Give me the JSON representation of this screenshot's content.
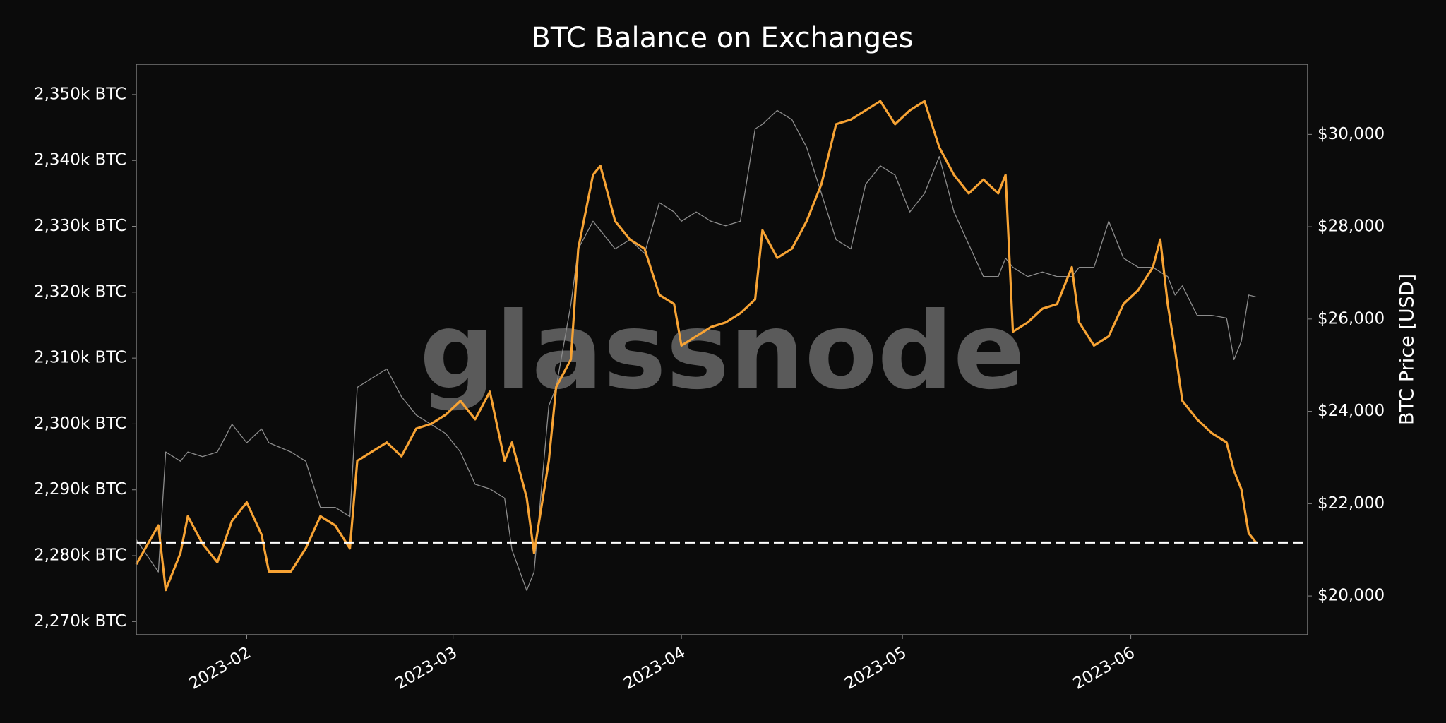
{
  "chart_data": {
    "type": "line",
    "title": "BTC Balance on Exchanges",
    "watermark": "glassnode",
    "y2label": "BTC Price [USD]",
    "background": "#0b0b0b",
    "x": [
      "2023-01-17",
      "2023-01-20",
      "2023-01-21",
      "2023-01-23",
      "2023-01-24",
      "2023-01-26",
      "2023-01-28",
      "2023-01-30",
      "2023-02-01",
      "2023-02-03",
      "2023-02-04",
      "2023-02-07",
      "2023-02-09",
      "2023-02-11",
      "2023-02-13",
      "2023-02-15",
      "2023-02-16",
      "2023-02-18",
      "2023-02-20",
      "2023-02-22",
      "2023-02-24",
      "2023-02-26",
      "2023-02-28",
      "2023-03-02",
      "2023-03-04",
      "2023-03-06",
      "2023-03-08",
      "2023-03-09",
      "2023-03-11",
      "2023-03-12",
      "2023-03-14",
      "2023-03-15",
      "2023-03-17",
      "2023-03-18",
      "2023-03-20",
      "2023-03-21",
      "2023-03-23",
      "2023-03-25",
      "2023-03-27",
      "2023-03-29",
      "2023-03-31",
      "2023-04-01",
      "2023-04-03",
      "2023-04-05",
      "2023-04-07",
      "2023-04-09",
      "2023-04-11",
      "2023-04-12",
      "2023-04-14",
      "2023-04-16",
      "2023-04-18",
      "2023-04-20",
      "2023-04-22",
      "2023-04-24",
      "2023-04-26",
      "2023-04-28",
      "2023-04-30",
      "2023-05-02",
      "2023-05-04",
      "2023-05-06",
      "2023-05-08",
      "2023-05-10",
      "2023-05-12",
      "2023-05-14",
      "2023-05-15",
      "2023-05-16",
      "2023-05-18",
      "2023-05-20",
      "2023-05-22",
      "2023-05-24",
      "2023-05-25",
      "2023-05-27",
      "2023-05-29",
      "2023-05-31",
      "2023-06-02",
      "2023-06-04",
      "2023-06-05",
      "2023-06-06",
      "2023-06-07",
      "2023-06-08",
      "2023-06-10",
      "2023-06-12",
      "2023-06-14",
      "2023-06-15",
      "2023-06-16",
      "2023-06-17",
      "2023-06-18"
    ],
    "series": [
      {
        "name": "BTC Price",
        "color": "#8c8c8c",
        "axis": "y2",
        "width": 1.3,
        "values": [
          21220,
          20520,
          23120,
          22920,
          23120,
          23020,
          23120,
          23720,
          23320,
          23620,
          23320,
          23120,
          22920,
          21920,
          21920,
          21720,
          24520,
          24720,
          24920,
          24320,
          23920,
          23720,
          23520,
          23120,
          22420,
          22320,
          22120,
          21000,
          20120,
          20520,
          24120,
          24520,
          26320,
          27520,
          28120,
          27920,
          27520,
          27720,
          27420,
          28520,
          28320,
          28120,
          28320,
          28120,
          28020,
          28120,
          30120,
          30220,
          30520,
          30320,
          29720,
          28720,
          27720,
          27520,
          28920,
          29320,
          29120,
          28320,
          28720,
          29520,
          28320,
          27620,
          26920,
          26920,
          27320,
          27120,
          26920,
          27020,
          26920,
          26920,
          27120,
          27120,
          28120,
          27320,
          27120,
          27120,
          27020,
          26920,
          26520,
          26720,
          26080,
          26080,
          26020,
          25120,
          25520,
          26520,
          26480
        ]
      },
      {
        "name": "BTC Balance on Exchanges",
        "color": "#f7a334",
        "axis": "y",
        "width": 3.2,
        "values": [
          2278700,
          2284600,
          2274800,
          2280400,
          2286000,
          2281800,
          2279000,
          2285300,
          2288100,
          2283200,
          2277600,
          2277600,
          2281100,
          2286000,
          2284600,
          2281100,
          2294400,
          2295800,
          2297200,
          2295100,
          2299300,
          2300000,
          2301400,
          2303500,
          2300700,
          2304900,
          2294400,
          2297200,
          2288800,
          2280400,
          2294400,
          2305600,
          2309800,
          2326600,
          2337800,
          2339200,
          2330800,
          2328000,
          2326600,
          2319600,
          2318200,
          2311900,
          2313300,
          2314700,
          2315400,
          2316800,
          2318900,
          2329400,
          2325200,
          2326600,
          2330800,
          2336400,
          2345500,
          2346200,
          2347600,
          2349000,
          2345500,
          2347600,
          2349000,
          2342000,
          2337800,
          2335000,
          2337100,
          2335000,
          2337800,
          2314000,
          2315400,
          2317500,
          2318200,
          2323800,
          2315400,
          2311900,
          2313300,
          2318200,
          2320300,
          2323800,
          2328000,
          2318200,
          2311200,
          2303500,
          2300700,
          2298600,
          2297200,
          2292900,
          2290100,
          2283400,
          2282000
        ]
      }
    ],
    "hline": 2282000,
    "xlim": [
      "2023-01-17",
      "2023-06-25"
    ],
    "xticks": [
      {
        "value": "2023-02-01",
        "label": "2023-02"
      },
      {
        "value": "2023-03-01",
        "label": "2023-03"
      },
      {
        "value": "2023-04-01",
        "label": "2023-04"
      },
      {
        "value": "2023-05-01",
        "label": "2023-05"
      },
      {
        "value": "2023-06-01",
        "label": "2023-06"
      }
    ],
    "ylim": [
      2268000,
      2354600
    ],
    "yticks": [
      {
        "value": 2270000,
        "label": "2,270k BTC"
      },
      {
        "value": 2280000,
        "label": "2,280k BTC"
      },
      {
        "value": 2290000,
        "label": "2,290k BTC"
      },
      {
        "value": 2300000,
        "label": "2,300k BTC"
      },
      {
        "value": 2310000,
        "label": "2,310k BTC"
      },
      {
        "value": 2320000,
        "label": "2,320k BTC"
      },
      {
        "value": 2330000,
        "label": "2,330k BTC"
      },
      {
        "value": 2340000,
        "label": "2,340k BTC"
      },
      {
        "value": 2350000,
        "label": "2,350k BTC"
      }
    ],
    "y2lim": [
      19160,
      31520
    ],
    "y2ticks": [
      {
        "value": 20000,
        "label": "$20,000"
      },
      {
        "value": 22000,
        "label": "$22,000"
      },
      {
        "value": 24000,
        "label": "$24,000"
      },
      {
        "value": 26000,
        "label": "$26,000"
      },
      {
        "value": 28000,
        "label": "$28,000"
      },
      {
        "value": 30000,
        "label": "$30,000"
      }
    ],
    "grid": false
  }
}
